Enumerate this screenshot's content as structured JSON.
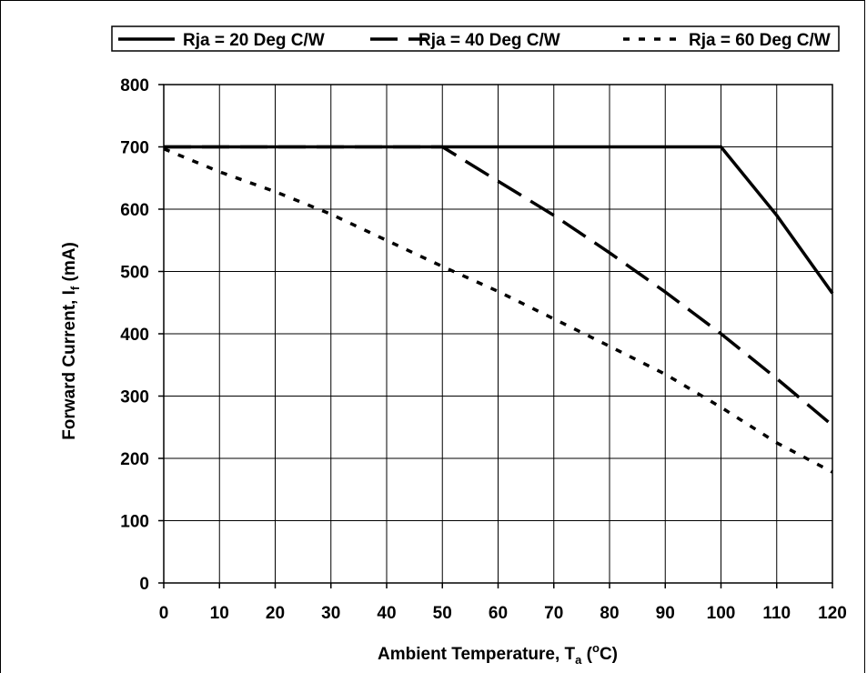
{
  "chart_data": {
    "type": "line",
    "title": "",
    "xlabel": "Ambient Temperature, T",
    "xlabel_sub": "a",
    "xlabel_tail_open": " (",
    "xlabel_sup": "o",
    "xlabel_tail_close": "C)",
    "ylabel": "Forward Current, I",
    "ylabel_sub": "f",
    "ylabel_tail": " (mA)",
    "xlim": [
      0,
      120
    ],
    "ylim": [
      0,
      800
    ],
    "xticks": [
      0,
      10,
      20,
      30,
      40,
      50,
      60,
      70,
      80,
      90,
      100,
      110,
      120
    ],
    "yticks": [
      0,
      100,
      200,
      300,
      400,
      500,
      600,
      700,
      800
    ],
    "grid": true,
    "legend": "top",
    "series": [
      {
        "name": "Rja = 20 Deg C/W",
        "style": "solid",
        "x": [
          0,
          10,
          20,
          30,
          40,
          50,
          60,
          70,
          80,
          90,
          100,
          110,
          120
        ],
        "y": [
          700,
          700,
          700,
          700,
          700,
          700,
          700,
          700,
          700,
          700,
          700,
          590,
          465
        ]
      },
      {
        "name": "Rja = 40 Deg C/W",
        "style": "dash",
        "x": [
          0,
          10,
          20,
          30,
          40,
          50,
          60,
          70,
          80,
          90,
          100,
          110,
          120
        ],
        "y": [
          700,
          700,
          700,
          700,
          700,
          700,
          645,
          590,
          530,
          467,
          400,
          328,
          253
        ]
      },
      {
        "name": "Rja = 60 Deg C/W",
        "style": "dot",
        "x": [
          0,
          10,
          20,
          30,
          40,
          50,
          60,
          70,
          80,
          90,
          100,
          110,
          120
        ],
        "y": [
          697,
          660,
          628,
          592,
          550,
          508,
          468,
          424,
          380,
          335,
          282,
          225,
          178
        ]
      }
    ]
  }
}
